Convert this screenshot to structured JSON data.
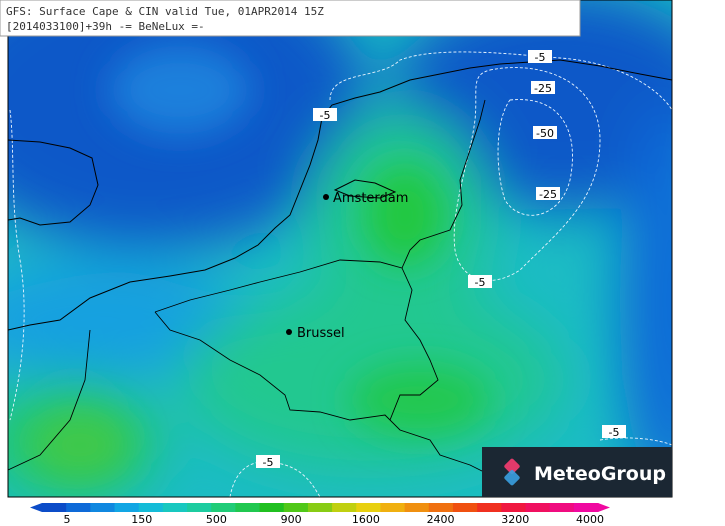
{
  "header": {
    "line1": "GFS: Surface Cape & CIN valid Tue, 01APR2014 15Z",
    "line2": "[2014033100]+39h -= BeNeLux =-"
  },
  "cities": [
    {
      "label": "Amsterdam"
    },
    {
      "label": "Brussel"
    }
  ],
  "contour_labels": [
    "-5",
    "-5",
    "-25",
    "-50",
    "-25",
    "-5",
    "-5",
    "-5"
  ],
  "logo": "MeteoGroup",
  "colorbar": {
    "labels": [
      5,
      150,
      500,
      900,
      1600,
      2400,
      3200,
      4000
    ],
    "colors": [
      "#0c4cc8",
      "#0e6ad8",
      "#1088e0",
      "#12a6e4",
      "#14bcd8",
      "#18c8c0",
      "#1ccca0",
      "#20cc78",
      "#20c850",
      "#20c020",
      "#50c818",
      "#88cc14",
      "#c0d010",
      "#e8d010",
      "#f0b010",
      "#f09010",
      "#f07010",
      "#f05010",
      "#f03020",
      "#f01840",
      "#f01060",
      "#f00c80",
      "#f008a0"
    ]
  }
}
